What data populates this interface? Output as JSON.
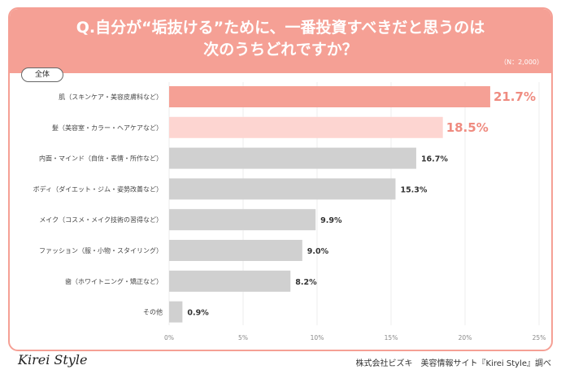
{
  "header": {
    "title_line1": "Q.自分が“垢抜ける”ために、一番投資すべきだと思うのは",
    "title_line2": "次のうちどれですか？",
    "sample": "（N：2,000）"
  },
  "filter_label": "全体",
  "colors": {
    "header": "#f5a095",
    "top1": "#f5a095",
    "top2": "#fdd5d1",
    "other": "#d0d0d0",
    "highlight_text": "#ef8b80"
  },
  "chart_data": {
    "type": "bar",
    "orientation": "horizontal",
    "categories": [
      "肌（スキンケア・美容皮膚科など）",
      "髪（美容室・カラー・ヘアケアなど）",
      "内面・マインド（自信・表情・所作など）",
      "ボディ（ダイエット・ジム・姿勢改善など）",
      "メイク（コスメ・メイク技術の習得など）",
      "ファッション（服・小物・スタイリング）",
      "歯（ホワイトニング・矯正など）",
      "その他"
    ],
    "values": [
      21.7,
      18.5,
      16.7,
      15.3,
      9.9,
      9.0,
      8.2,
      0.9
    ],
    "value_labels": [
      "21.7%",
      "18.5%",
      "16.7%",
      "15.3%",
      "9.9%",
      "9.0%",
      "8.2%",
      "0.9%"
    ],
    "xlim": [
      0,
      25
    ],
    "xticks": [
      "0%",
      "5%",
      "10%",
      "15%",
      "20%",
      "25%"
    ],
    "grid": true
  },
  "footer": {
    "logo": "Kirei Style",
    "source": "株式会社ビズキ　美容情報サイト『Kirei Style』調べ"
  }
}
